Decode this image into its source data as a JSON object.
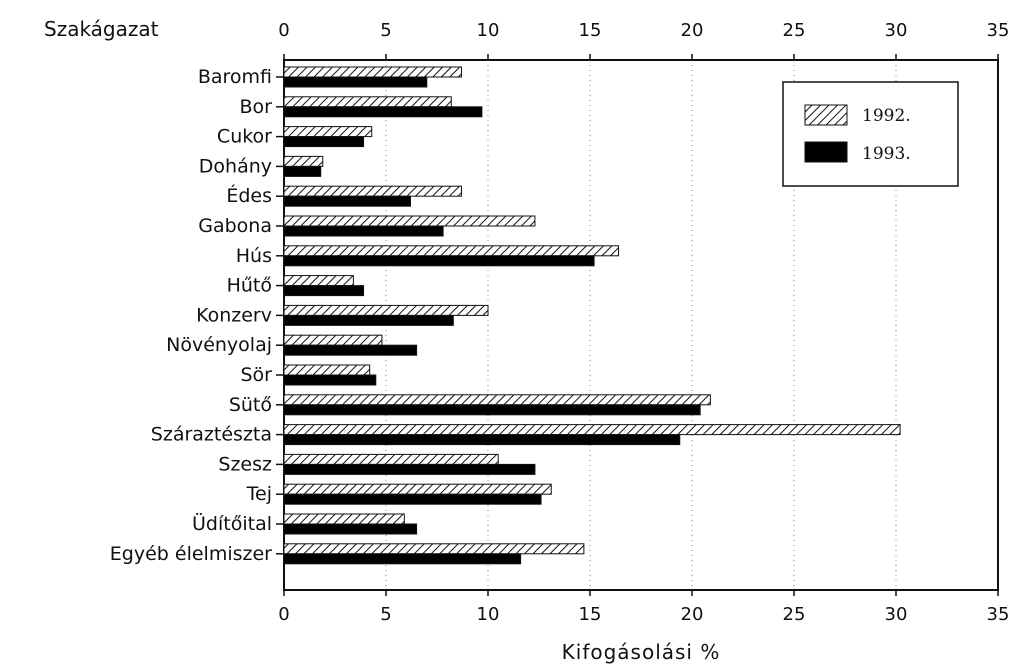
{
  "chart_data": {
    "type": "bar",
    "orientation": "horizontal",
    "category_axis_label": "Szakágazat",
    "xlabel": "Kifogásolási %",
    "xlim": [
      0,
      35
    ],
    "x_ticks": [
      0,
      5,
      10,
      15,
      20,
      25,
      30,
      35
    ],
    "grid": "vertical dotted",
    "legend_position": "top-right",
    "categories": [
      "Baromfi",
      "Bor",
      "Cukor",
      "Dohány",
      "Édes",
      "Gabona",
      "Hús",
      "Hűtő",
      "Konzerv",
      "Növényolaj",
      "Sör",
      "Sütő",
      "Száraztészta",
      "Szesz",
      "Tej",
      "Üdítőital",
      "Egyéb élelmiszer"
    ],
    "series": [
      {
        "name": "1992.",
        "pattern": "diagonal-hatch",
        "values": [
          8.7,
          8.2,
          4.3,
          1.9,
          8.7,
          12.3,
          16.4,
          3.4,
          10.0,
          4.8,
          4.2,
          20.9,
          30.2,
          10.5,
          13.1,
          5.9,
          14.7
        ]
      },
      {
        "name": "1993.",
        "pattern": "solid",
        "color": "#000000",
        "values": [
          7.0,
          9.7,
          3.9,
          1.8,
          6.2,
          7.8,
          15.2,
          3.9,
          8.3,
          6.5,
          4.5,
          20.4,
          19.4,
          12.3,
          12.6,
          6.5,
          11.6
        ]
      }
    ]
  }
}
